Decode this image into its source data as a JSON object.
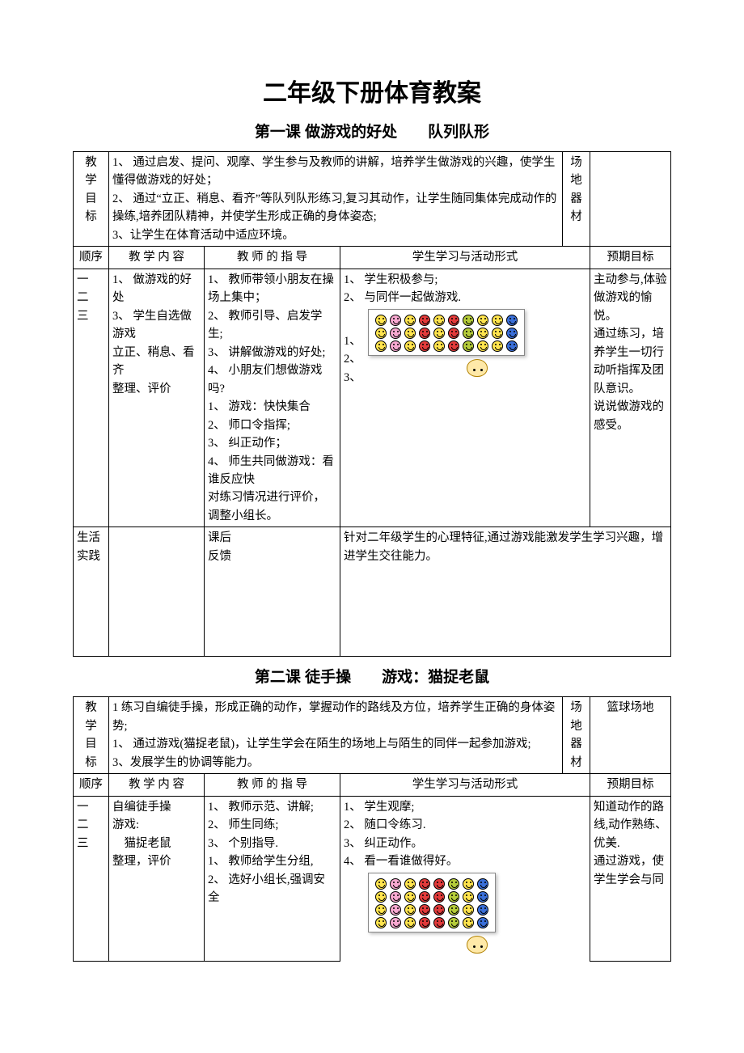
{
  "colors": {
    "text": "#000000",
    "background": "#ffffff",
    "border": "#000000",
    "teacher_fill": "#ffe9a8",
    "teacher_stroke": "#b08000"
  },
  "fonts": {
    "title_family": "SimHei",
    "body_family": "SimSun",
    "title_size_pt": 22,
    "subtitle_size_pt": 14,
    "body_size_pt": 11
  },
  "main_title": "二年级下册体育教案",
  "lessons": [
    {
      "subtitle": "第一课 做游戏的好处　　队列队形",
      "goal_label": "教\n学\n目\n标",
      "goal_text": "1、 通过启发、提问、观摩、学生参与及教师的讲解，培养学生做游戏的兴趣，使学生懂得做游戏的好处；\n2、 通过“立正、稍息、看齐”等队列队形练习,复习其动作，让学生随同集体完成动作的操练,培养团队精神，并使学生形成正确的身体姿态;\n3、让学生在体育活动中适应环境。",
      "venue_label": "场\n地\n器\n材",
      "venue_text": "",
      "headers": {
        "order": "顺序",
        "content": "教 学 内 容",
        "teacher": "教 师 的 指 导",
        "activity": "学生学习与活动形式",
        "target": "预期目标"
      },
      "order_text": "一\n二\n三",
      "content_text": "1、 做游戏的好处\n3、 学生自选做游戏\n立正、稍息、看齐\n整理、评价",
      "teacher_text": "1、 教师带领小朋友在操场上集中；\n2、 教师引导、启发学生;\n3、 讲解做游戏的好处;\n4、 小朋友们想做游戏吗?\n1、 游戏：快快集合\n2、 师口令指挥;\n3、 纠正动作；\n4、 师生共同做游戏：看谁反应快\n对练习情况进行评价，调整小组长。",
      "activity_text_above": "1、 学生积极参与;\n2、 与同伴一起做游戏.",
      "activity_side_nums": "1、\n2、\n3、",
      "target_text": "主动参与,体验做游戏的愉悦。\n通过练习，培养学生一切行动听指挥及团队意识。\n说说做游戏的感受。",
      "practice_label": "生活\n实践",
      "practice_text": "",
      "feedback_label": "课后\n反馈",
      "feedback_text": "针对二年级学生的心理特征,通过游戏能激发学生学习兴趣，增进学生交往能力。",
      "formation": {
        "type": "grid",
        "rows": 3,
        "cols": 10,
        "column_colors": [
          "#ffe44d",
          "#f7a8d0",
          "#ffe44d",
          "#e23b3b",
          "#ffe44d",
          "#e23b3b",
          "#b5cc3a",
          "#ffe44d",
          "#ffe44d",
          "#3a6fd8"
        ],
        "teacher_color": "#ffe9a8"
      }
    },
    {
      "subtitle": "第二课 徒手操　　游戏：猫捉老鼠",
      "goal_label": "教\n学\n目\n标",
      "goal_text": "1 练习自编徒手操，形成正确的动作，掌握动作的路线及方位，培养学生正确的身体姿势;\n1、 通过游戏(猫捉老鼠)，让学生学会在陌生的场地上与陌生的同伴一起参加游戏;\n3、发展学生的协调等能力。",
      "venue_label": "场\n地\n器\n材",
      "venue_text": "篮球场地",
      "headers": {
        "order": "顺序",
        "content": "教 学 内 容",
        "teacher": "教 师 的 指 导",
        "activity": "学生学习与活动形式",
        "target": "预期目标"
      },
      "order_text": "一\n二\n三",
      "content_text": "自编徒手操\n游戏:\n　猫捉老鼠\n整理，评价",
      "teacher_text": "1、 教师示范、讲解;\n2、 师生同练;\n3、 个别指导.\n1、 教师给学生分组,\n2、 选好小组长,强调安全",
      "activity_text_above": "1、 学生观摩;\n2、 随口令练习.\n3、 纠正动作。\n4、 看一看谁做得好。",
      "activity_side_nums": "",
      "target_text": "知道动作的路线,动作熟练、优美.\n通过游戏，使学生学会与同",
      "practice_label": "",
      "practice_text": "",
      "feedback_label": "",
      "feedback_text": "",
      "formation": {
        "type": "grid",
        "rows": 4,
        "cols": 8,
        "column_colors": [
          "#ffe44d",
          "#f7a8d0",
          "#ffe44d",
          "#e23b3b",
          "#e23b3b",
          "#b5cc3a",
          "#ffe44d",
          "#3a6fd8"
        ],
        "teacher_color": "#ffe9a8"
      }
    }
  ]
}
